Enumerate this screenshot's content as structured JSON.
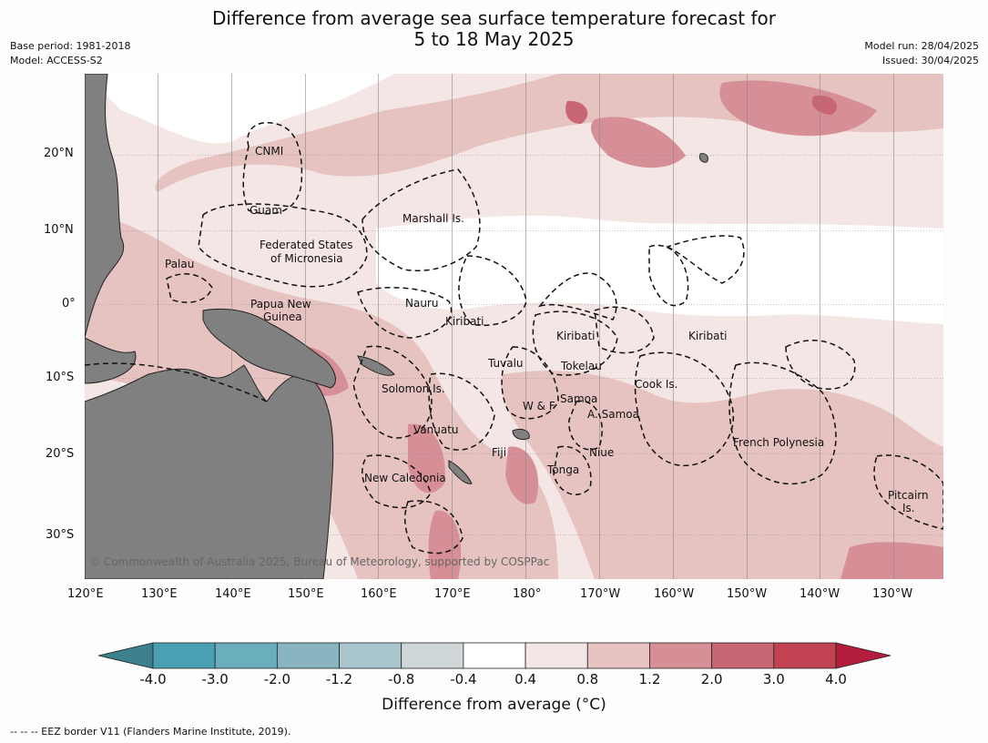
{
  "title_line1": "Difference from average sea surface temperature forecast for",
  "title_line2": "5 to 18 May 2025",
  "base_period": "Base period: 1981-2018",
  "model": "Model: ACCESS-S2",
  "model_run": "Model run: 28/04/2025",
  "issued": "Issued: 30/04/2025",
  "lat_labels": [
    "20°N",
    "10°N",
    "0°",
    "10°S",
    "20°S",
    "30°S"
  ],
  "lon_labels": [
    "120°E",
    "130°E",
    "140°E",
    "150°E",
    "160°E",
    "170°E",
    "180°",
    "170°W",
    "160°W",
    "150°W",
    "140°W",
    "130°W"
  ],
  "places": {
    "cnmi": "CNMI",
    "guam": "Guam",
    "marshall": "Marshall Is.",
    "fsm1": "Federated States",
    "fsm2": "of Micronesia",
    "palau": "Palau",
    "png1": "Papua New",
    "png2": "Guinea",
    "nauru": "Nauru",
    "kiribati_w": "Kiribati",
    "kiribati_c": "Kiribati",
    "kiribati_e": "Kiribati",
    "tuvalu": "Tuvalu",
    "tokelau": "Tokelau",
    "cook": "Cook Is.",
    "solomon": "Solomon Is.",
    "samoa": "Samoa",
    "wf": "W & F",
    "asamoa": "A. Samoa",
    "vanuatu": "Vanuatu",
    "fiji": "Fiji",
    "niue": "Niue",
    "tonga": "Tonga",
    "french_poly": "French Polynesia",
    "new_caledonia": "New Caledonia",
    "pitcairn1": "Pitcairn",
    "pitcairn2": "Is."
  },
  "copyright": "© Commonwealth of Australia 2025, Bureau of Meteorology, supported by COSPPac",
  "colorbar": {
    "ticks": [
      "-4.0",
      "-3.0",
      "-2.0",
      "-1.2",
      "-0.8",
      "-0.4",
      "0.4",
      "0.8",
      "1.2",
      "2.0",
      "3.0",
      "4.0"
    ],
    "colors": [
      "#3d7f8b",
      "#4aa0b2",
      "#6aaebc",
      "#88b5c1",
      "#a8c6cb",
      "#cfd7d8",
      "#ffffff",
      "#f4e6e4",
      "#e6c3c0",
      "#d68f97",
      "#c86773",
      "#c14352",
      "#b21e3c"
    ],
    "label": "Difference from average (°C)"
  },
  "footnote": "--  --  -- EEZ border V11 (Flanders Marine Institute, 2019)."
}
